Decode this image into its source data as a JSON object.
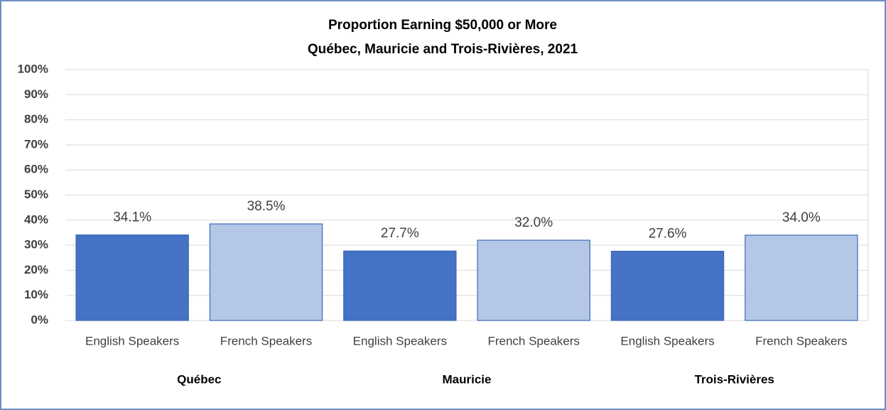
{
  "chart_data": {
    "type": "bar",
    "title": "Proportion Earning $50,000 or More",
    "subtitle": "Québec, Mauricie and Trois-Rivières, 2021",
    "categories": [
      "English Speakers",
      "French Speakers",
      "English Speakers",
      "French Speakers",
      "English Speakers",
      "French Speakers"
    ],
    "groups": [
      "Québec",
      "Mauricie",
      "Trois-Rivières"
    ],
    "values": [
      34.1,
      38.5,
      27.7,
      32.0,
      27.6,
      34.0
    ],
    "value_labels": [
      "34.1%",
      "38.5%",
      "27.7%",
      "32.0%",
      "27.6%",
      "34.0%"
    ],
    "colors": [
      "#4472c4",
      "#b4c7e7",
      "#4472c4",
      "#b4c7e7",
      "#4472c4",
      "#b4c7e7"
    ],
    "ylim": [
      0,
      100
    ],
    "yticks": [
      {
        "value": 0,
        "label": "0%"
      },
      {
        "value": 10,
        "label": "10%"
      },
      {
        "value": 20,
        "label": "20%"
      },
      {
        "value": 30,
        "label": "30%"
      },
      {
        "value": 40,
        "label": "40%"
      },
      {
        "value": 50,
        "label": "50%"
      },
      {
        "value": 60,
        "label": "60%"
      },
      {
        "value": 70,
        "label": "70%"
      },
      {
        "value": 80,
        "label": "80%"
      },
      {
        "value": 90,
        "label": "90%"
      },
      {
        "value": 100,
        "label": "100%"
      }
    ],
    "grid": true
  }
}
